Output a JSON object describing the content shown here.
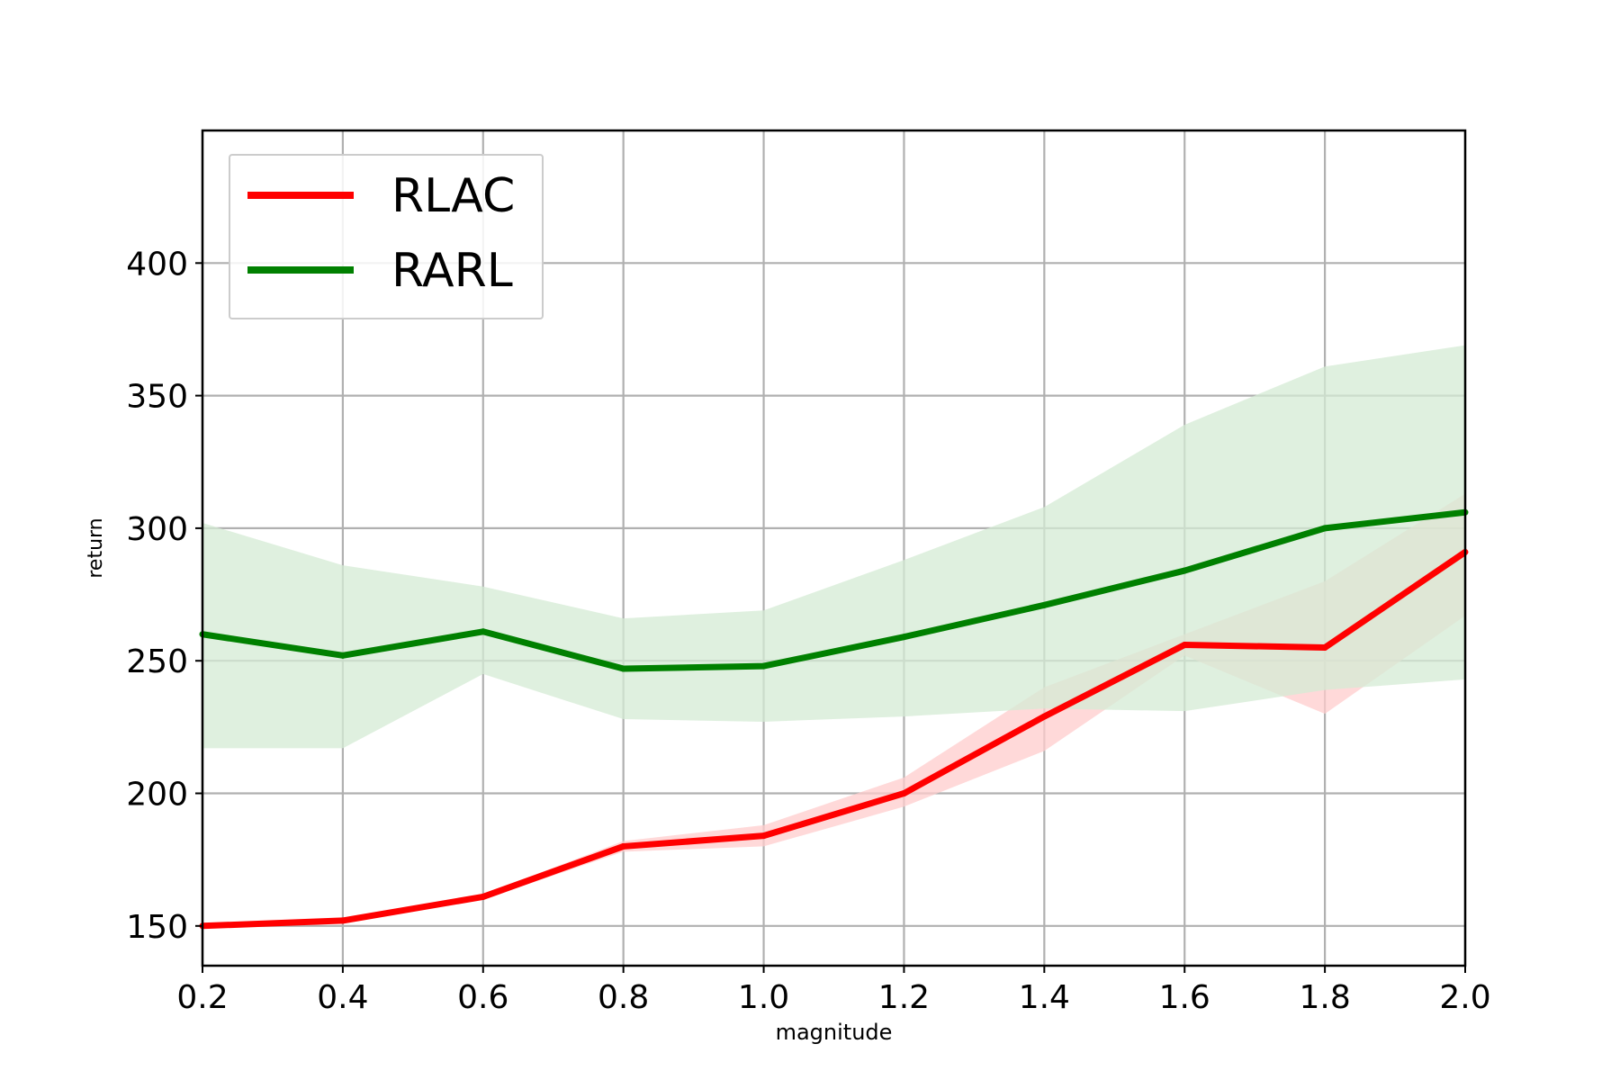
{
  "chart_data": {
    "type": "line",
    "title": "",
    "xlabel": "magnitude",
    "ylabel": "return",
    "xlim": [
      0.2,
      2.0
    ],
    "ylim": [
      135,
      450
    ],
    "xticks": [
      0.2,
      0.4,
      0.6,
      0.8,
      1.0,
      1.2,
      1.4,
      1.6,
      1.8,
      2.0
    ],
    "yticks": [
      150,
      200,
      250,
      300,
      350,
      400
    ],
    "x": [
      0.2,
      0.4,
      0.6,
      0.8,
      1.0,
      1.2,
      1.4,
      1.6,
      1.8,
      2.0
    ],
    "grid": true,
    "legend_position": "top-left",
    "series": [
      {
        "name": "RLAC",
        "color": "#ff0000",
        "values": [
          150,
          152,
          161,
          180,
          184,
          200,
          229,
          256,
          255,
          291
        ],
        "band_lower": [
          149,
          151,
          160,
          178,
          180,
          195,
          216,
          252,
          230,
          267
        ],
        "band_upper": [
          151,
          153,
          162,
          182,
          188,
          206,
          240,
          260,
          280,
          313
        ],
        "band_color": "#ffcccc"
      },
      {
        "name": "RARL",
        "color": "#008000",
        "values": [
          260,
          252,
          261,
          247,
          248,
          259,
          271,
          284,
          300,
          306
        ],
        "band_lower": [
          217,
          217,
          245,
          228,
          227,
          229,
          232,
          231,
          239,
          243
        ],
        "band_upper": [
          302,
          286,
          278,
          266,
          269,
          288,
          308,
          339,
          361,
          369
        ],
        "band_color": "#d4ebd4"
      }
    ]
  }
}
